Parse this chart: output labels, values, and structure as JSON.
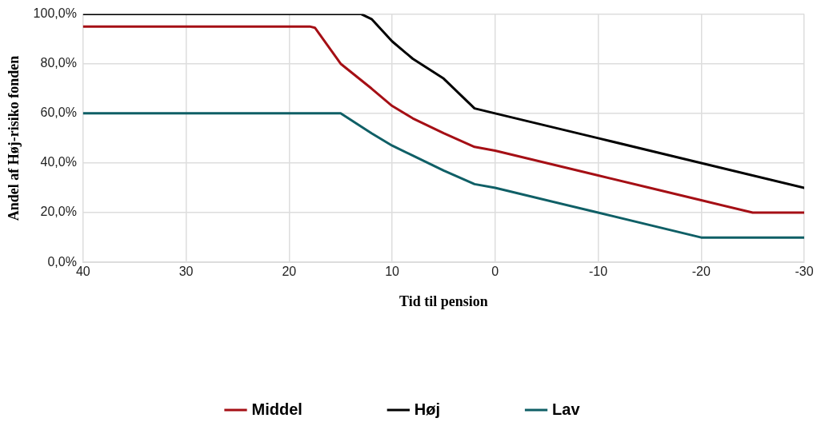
{
  "chart_data": {
    "type": "line",
    "xlabel": "Tid til pension",
    "ylabel": "Andel af Høj-risiko fonden",
    "xlim": [
      40,
      -30
    ],
    "xticks": [
      40,
      30,
      20,
      10,
      0,
      -10,
      -20,
      -30
    ],
    "ylim": [
      0,
      100
    ],
    "yticks": [
      {
        "value": 0,
        "label": "0,0%"
      },
      {
        "value": 20,
        "label": "20,0%"
      },
      {
        "value": 40,
        "label": "40,0%"
      },
      {
        "value": 60,
        "label": "60,0%"
      },
      {
        "value": 80,
        "label": "80,0%"
      },
      {
        "value": 100,
        "label": "100,0%"
      }
    ],
    "grid": true,
    "legend": "bottom",
    "marker": "none",
    "line_style": "solid",
    "series": [
      {
        "name": "Middel",
        "color": "#a50f15",
        "x": [
          40,
          18,
          17.5,
          15,
          12,
          10,
          8,
          5,
          2,
          0,
          -5,
          -10,
          -15,
          -20,
          -25,
          -30
        ],
        "values": [
          95,
          95,
          94.5,
          80,
          70,
          63,
          58,
          52,
          46.5,
          45,
          40,
          35,
          30,
          25,
          20,
          20
        ]
      },
      {
        "name": "Høj",
        "color": "#000000",
        "x": [
          40,
          13,
          12,
          10,
          8,
          5,
          2,
          0,
          -10,
          -20,
          -30
        ],
        "values": [
          100,
          100,
          98,
          89,
          82,
          74,
          62,
          60,
          50,
          40,
          30
        ]
      },
      {
        "name": "Lav",
        "color": "#0f5f66",
        "x": [
          40,
          15,
          12,
          10,
          8,
          5,
          2,
          0,
          -10,
          -20,
          -30
        ],
        "values": [
          60,
          60,
          52,
          47,
          43,
          37,
          31.5,
          30,
          20,
          10,
          10
        ]
      }
    ]
  }
}
